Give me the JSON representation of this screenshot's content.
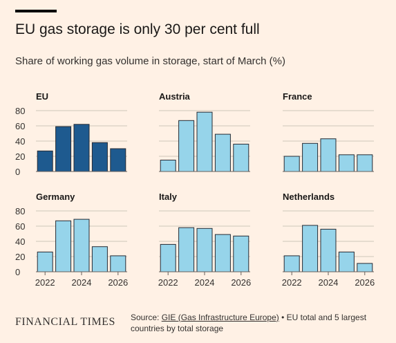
{
  "header": {
    "title": "EU gas storage is only 30 per cent full",
    "subtitle": "Share of working gas volume in storage, start of March (%)"
  },
  "footer": {
    "brand": "FINANCIAL TIMES",
    "source_label": "Source: ",
    "source_link": "GIE (Gas Infrastructure Europe)",
    "source_note": " • EU total and 5 largest countries by total storage"
  },
  "colors": {
    "background": "#fff1e5",
    "eu_bar": "#1e5a8f",
    "country_bar": "#96d4ea",
    "bar_stroke": "#262a33",
    "grid": "#cec6b9",
    "axis": "#66605c"
  },
  "chart_data": {
    "type": "bar",
    "x": [
      2022,
      2023,
      2024,
      2025,
      2026
    ],
    "x_tick_labels": [
      "2022",
      "2024",
      "2026"
    ],
    "ylim": [
      0,
      80
    ],
    "y_ticks": [
      0,
      20,
      40,
      60,
      80
    ],
    "grid": true,
    "panels": [
      {
        "name": "EU",
        "values": [
          27,
          59,
          62,
          38,
          30
        ]
      },
      {
        "name": "Austria",
        "values": [
          15,
          67,
          78,
          49,
          36
        ]
      },
      {
        "name": "France",
        "values": [
          20,
          37,
          43,
          22,
          22
        ]
      },
      {
        "name": "Germany",
        "values": [
          26,
          67,
          69,
          33,
          21
        ]
      },
      {
        "name": "Italy",
        "values": [
          36,
          58,
          57,
          49,
          47
        ]
      },
      {
        "name": "Netherlands",
        "values": [
          21,
          61,
          56,
          26,
          11
        ]
      }
    ]
  }
}
